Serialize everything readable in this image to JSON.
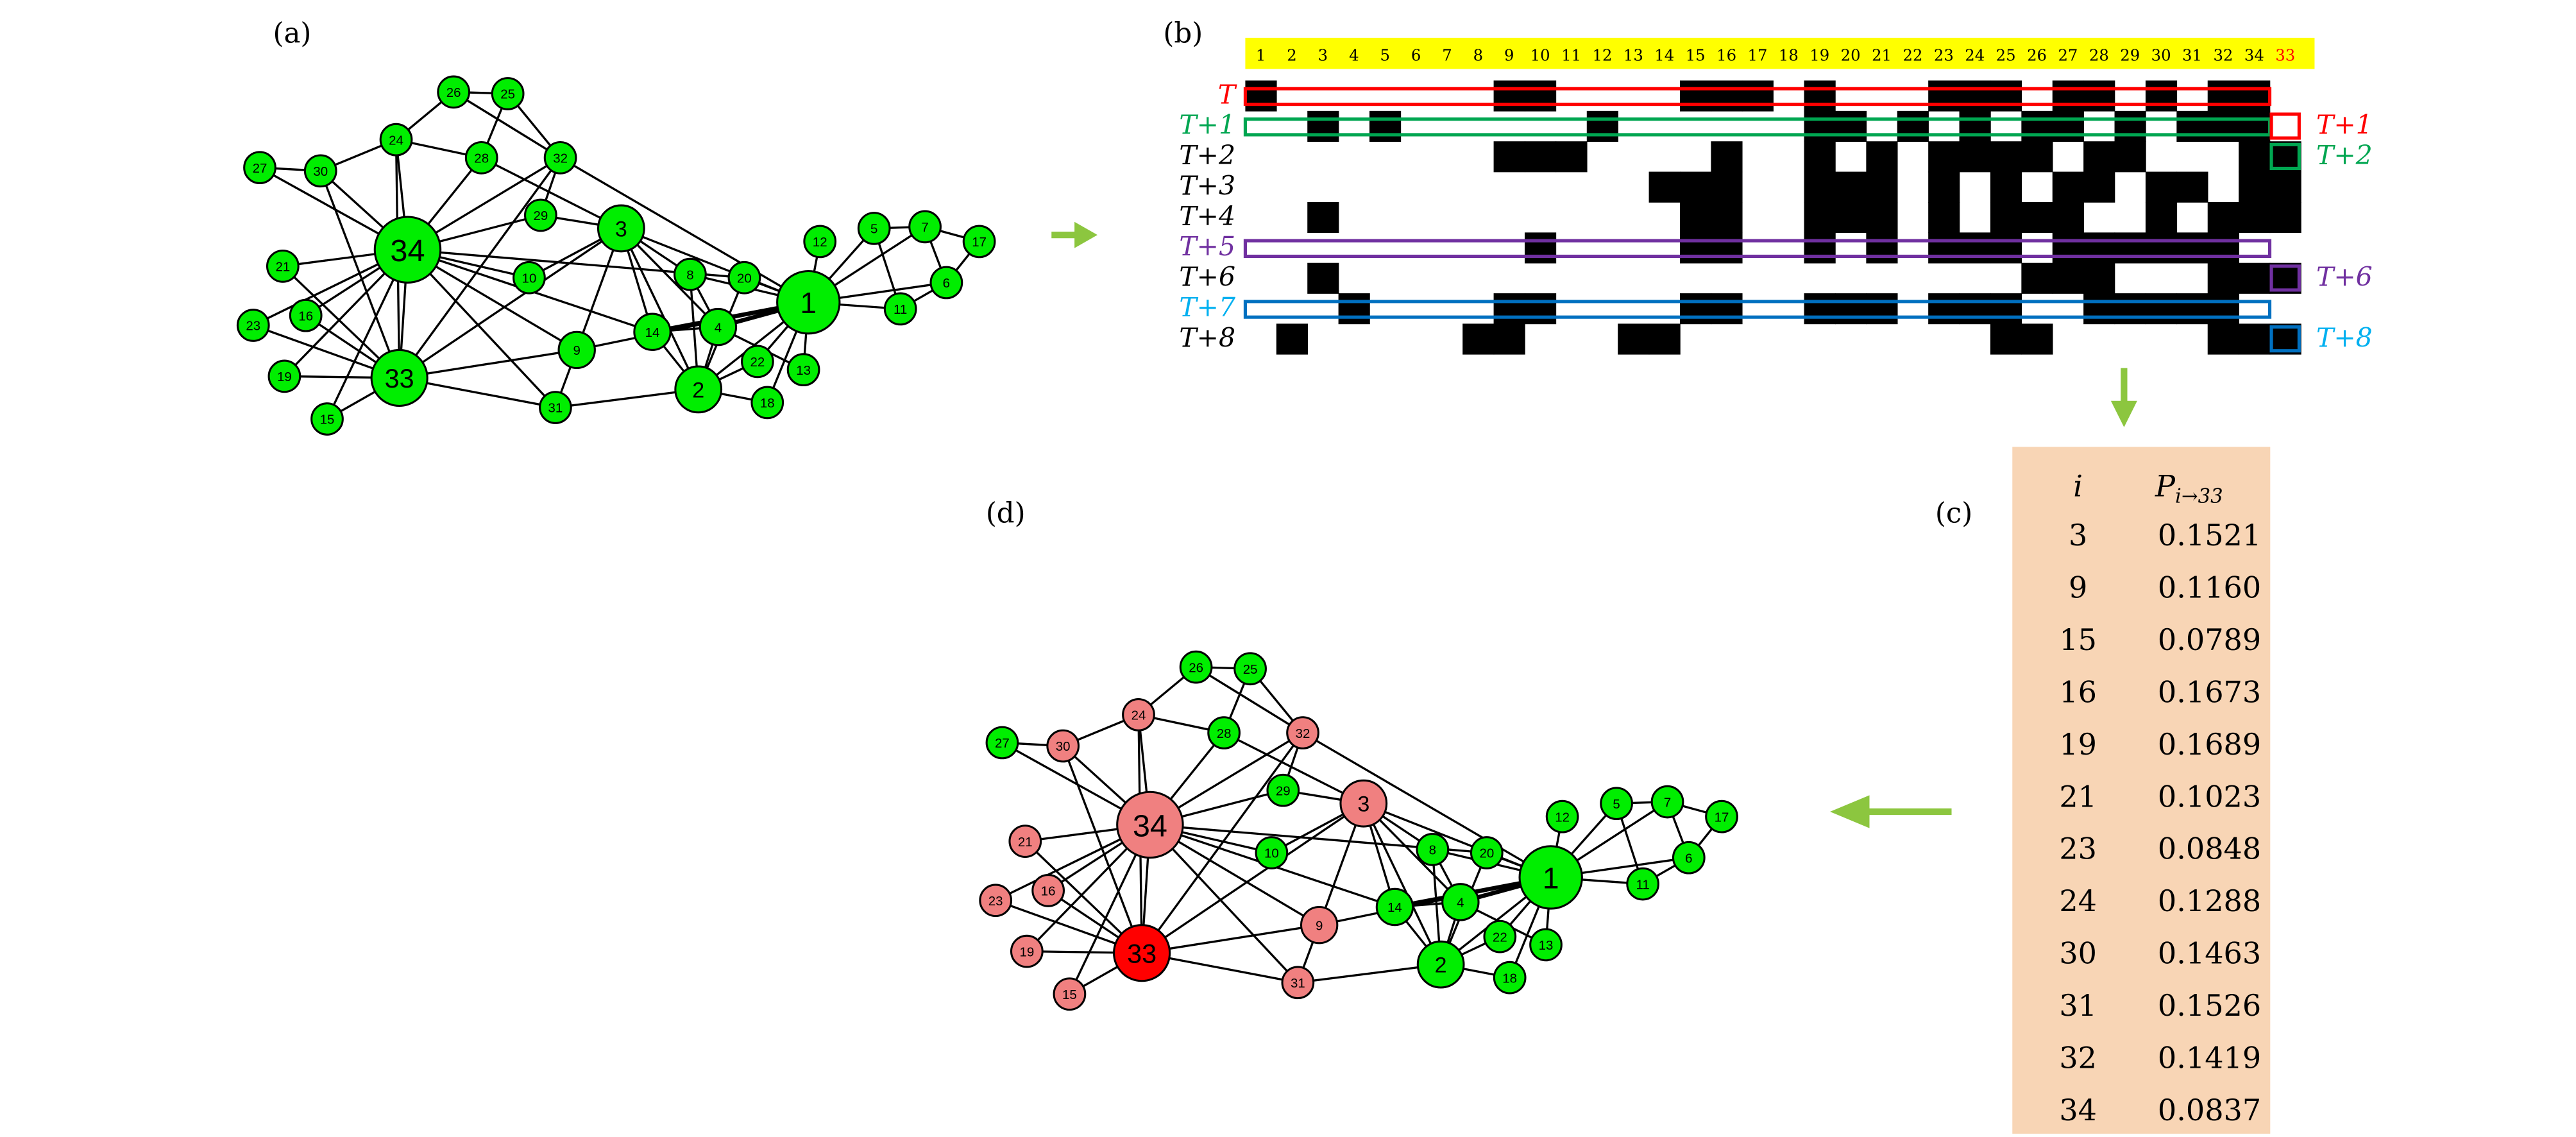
{
  "panels": {
    "a": "(a)",
    "b": "(b)",
    "c": "(c)",
    "d": "(d)"
  },
  "colors": {
    "node_default": "#00ee00",
    "node_influenced": "#f08080",
    "node_target": "#ff0000",
    "arrow": "#8cc63f",
    "header_band": "#ffff00",
    "table_bg": "#f8d5b5"
  },
  "graph": {
    "nodes": [
      "1",
      "2",
      "3",
      "4",
      "5",
      "6",
      "7",
      "8",
      "9",
      "10",
      "11",
      "12",
      "13",
      "14",
      "15",
      "16",
      "17",
      "18",
      "19",
      "20",
      "21",
      "22",
      "23",
      "24",
      "25",
      "26",
      "27",
      "28",
      "29",
      "30",
      "31",
      "32",
      "33",
      "34"
    ],
    "edges": [
      [
        1,
        2
      ],
      [
        1,
        3
      ],
      [
        1,
        4
      ],
      [
        1,
        5
      ],
      [
        1,
        6
      ],
      [
        1,
        7
      ],
      [
        1,
        8
      ],
      [
        1,
        9
      ],
      [
        1,
        11
      ],
      [
        1,
        12
      ],
      [
        1,
        13
      ],
      [
        1,
        14
      ],
      [
        1,
        18
      ],
      [
        1,
        20
      ],
      [
        1,
        22
      ],
      [
        1,
        32
      ],
      [
        2,
        3
      ],
      [
        2,
        4
      ],
      [
        2,
        8
      ],
      [
        2,
        14
      ],
      [
        2,
        18
      ],
      [
        2,
        20
      ],
      [
        2,
        22
      ],
      [
        2,
        31
      ],
      [
        3,
        4
      ],
      [
        3,
        8
      ],
      [
        3,
        9
      ],
      [
        3,
        10
      ],
      [
        3,
        14
      ],
      [
        3,
        28
      ],
      [
        3,
        29
      ],
      [
        3,
        33
      ],
      [
        4,
        8
      ],
      [
        4,
        13
      ],
      [
        4,
        14
      ],
      [
        5,
        7
      ],
      [
        5,
        11
      ],
      [
        6,
        7
      ],
      [
        6,
        11
      ],
      [
        6,
        17
      ],
      [
        7,
        17
      ],
      [
        9,
        31
      ],
      [
        9,
        33
      ],
      [
        9,
        34
      ],
      [
        10,
        34
      ],
      [
        14,
        34
      ],
      [
        15,
        33
      ],
      [
        15,
        34
      ],
      [
        16,
        33
      ],
      [
        16,
        34
      ],
      [
        19,
        33
      ],
      [
        19,
        34
      ],
      [
        20,
        34
      ],
      [
        21,
        33
      ],
      [
        21,
        34
      ],
      [
        23,
        33
      ],
      [
        23,
        34
      ],
      [
        24,
        26
      ],
      [
        24,
        28
      ],
      [
        24,
        30
      ],
      [
        24,
        33
      ],
      [
        24,
        34
      ],
      [
        25,
        26
      ],
      [
        25,
        28
      ],
      [
        25,
        32
      ],
      [
        26,
        32
      ],
      [
        27,
        30
      ],
      [
        27,
        34
      ],
      [
        28,
        34
      ],
      [
        29,
        32
      ],
      [
        29,
        34
      ],
      [
        30,
        33
      ],
      [
        30,
        34
      ],
      [
        31,
        33
      ],
      [
        31,
        34
      ],
      [
        32,
        33
      ],
      [
        32,
        34
      ],
      [
        33,
        34
      ]
    ],
    "target": 33,
    "influenced": [
      3,
      9,
      15,
      16,
      19,
      21,
      23,
      24,
      30,
      31,
      32,
      34
    ]
  },
  "matrix": {
    "columns": [
      "1",
      "2",
      "3",
      "4",
      "5",
      "6",
      "7",
      "8",
      "9",
      "10",
      "11",
      "12",
      "13",
      "14",
      "15",
      "16",
      "17",
      "18",
      "19",
      "20",
      "21",
      "22",
      "23",
      "24",
      "25",
      "26",
      "27",
      "28",
      "29",
      "30",
      "31",
      "32",
      "34",
      "33"
    ],
    "target_column_color": "#ff0000",
    "rows": [
      {
        "label": "T",
        "color": "#ff0000",
        "cells": "1000000011000011101000111011010110",
        "box": "#ff0000"
      },
      {
        "label": "T+1",
        "color": "#00a651",
        "cells": "0010100000010000001101010110101110",
        "box": "#00a651"
      },
      {
        "label": "T+2",
        "color": "#000000",
        "cells": "0000000011100001001010111101100011"
      },
      {
        "label": "T+3",
        "color": "#000000",
        "cells": "0000000000000111001110101011011011"
      },
      {
        "label": "T+4",
        "color": "#000000",
        "cells": "0010000000000011001110101110010111"
      },
      {
        "label": "T+5",
        "color": "#7030a0",
        "cells": "0000000001000011001010111011111100",
        "box": "#7030a0"
      },
      {
        "label": "T+6",
        "color": "#000000",
        "cells": "0010000000000000000000000111000111"
      },
      {
        "label": "T+7",
        "color": "#00b0f0",
        "cells": "0001000011000011001110111001111100",
        "box": "#0070c0"
      },
      {
        "label": "T+8",
        "color": "#000000",
        "cells": "0100000110001100000000001100000111"
      }
    ],
    "right_labels": [
      {
        "label": "T+1",
        "color": "#ff0000",
        "box": "#ff0000",
        "row": 1
      },
      {
        "label": "T+2",
        "color": "#00a651",
        "box": "#00a651",
        "row": 2
      },
      {
        "label": "T+6",
        "color": "#7030a0",
        "box": "#7030a0",
        "row": 6
      },
      {
        "label": "T+8",
        "color": "#00b0f0",
        "box": "#0070c0",
        "row": 8
      }
    ]
  },
  "table": {
    "header_i": "i",
    "header_p": "P",
    "header_p_sub": "i→33",
    "rows": [
      {
        "i": "3",
        "p": "0.1521"
      },
      {
        "i": "9",
        "p": "0.1160"
      },
      {
        "i": "15",
        "p": "0.0789"
      },
      {
        "i": "16",
        "p": "0.1673"
      },
      {
        "i": "19",
        "p": "0.1689"
      },
      {
        "i": "21",
        "p": "0.1023"
      },
      {
        "i": "23",
        "p": "0.0848"
      },
      {
        "i": "24",
        "p": "0.1288"
      },
      {
        "i": "30",
        "p": "0.1463"
      },
      {
        "i": "31",
        "p": "0.1526"
      },
      {
        "i": "32",
        "p": "0.1419"
      },
      {
        "i": "34",
        "p": "0.0837"
      }
    ]
  }
}
